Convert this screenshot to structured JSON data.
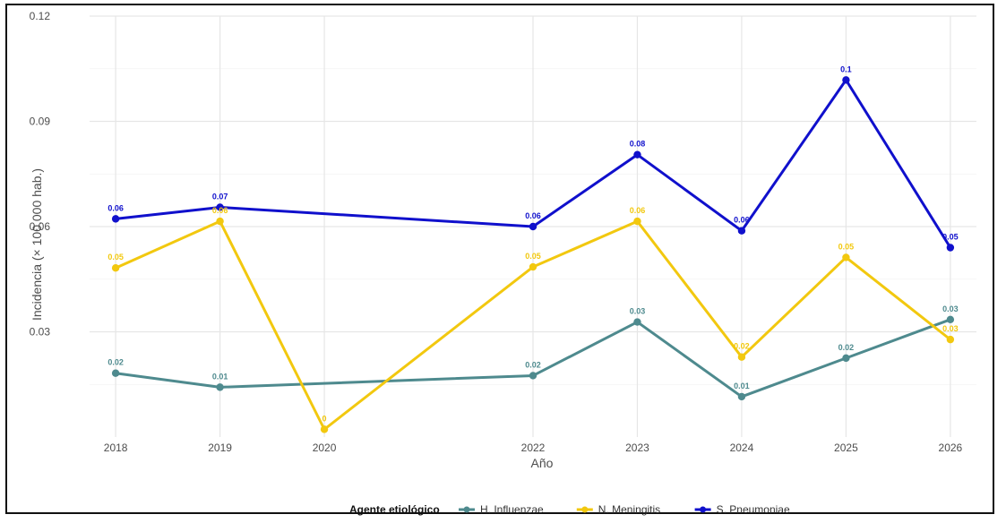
{
  "chart_data": {
    "type": "line",
    "title": "",
    "xlabel": "Año",
    "ylabel": "Incidencia (× 100.000 hab.)",
    "x": [
      2018,
      2019,
      2020,
      2022,
      2023,
      2024,
      2025,
      2026
    ],
    "x_tick_labels": [
      "2018",
      "2019",
      "2020",
      "2022",
      "2023",
      "2024",
      "2025",
      "2026"
    ],
    "xlim": [
      2017.75,
      2026.25
    ],
    "ylim": [
      0,
      0.12
    ],
    "y_ticks": [
      0.03,
      0.06,
      0.09,
      0.12
    ],
    "y_tick_labels": [
      "0.03",
      "0.06",
      "0.09",
      "0.12"
    ],
    "grid": true,
    "legend": {
      "title": "Agente etiológico",
      "position": "bottom"
    },
    "series": [
      {
        "name": "H. Influenzae",
        "color": "#4e8a8e",
        "values": [
          0.0182,
          0.0142,
          null,
          0.0175,
          0.0328,
          0.0115,
          0.0225,
          0.0335
        ],
        "labels": [
          "0.02",
          "0.01",
          "",
          "0.02",
          "0.03",
          "0.01",
          "0.02",
          "0.03"
        ]
      },
      {
        "name": "N. Meningitis",
        "color": "#f2c80f",
        "values": [
          0.0482,
          0.0615,
          0.0022,
          0.0485,
          0.0615,
          0.0228,
          0.0512,
          0.0278
        ],
        "labels": [
          "0.05",
          "0.06",
          "0",
          "0.05",
          "0.06",
          "0.02",
          "0.05",
          "0.03"
        ]
      },
      {
        "name": "S. Pneumoniae",
        "color": "#1010cc",
        "values": [
          0.0622,
          0.0655,
          null,
          0.06,
          0.0805,
          0.0588,
          0.1018,
          0.054
        ],
        "labels": [
          "0.06",
          "0.07",
          "",
          "0.06",
          "0.08",
          "0.06",
          "0.1",
          "0.05"
        ]
      }
    ]
  }
}
